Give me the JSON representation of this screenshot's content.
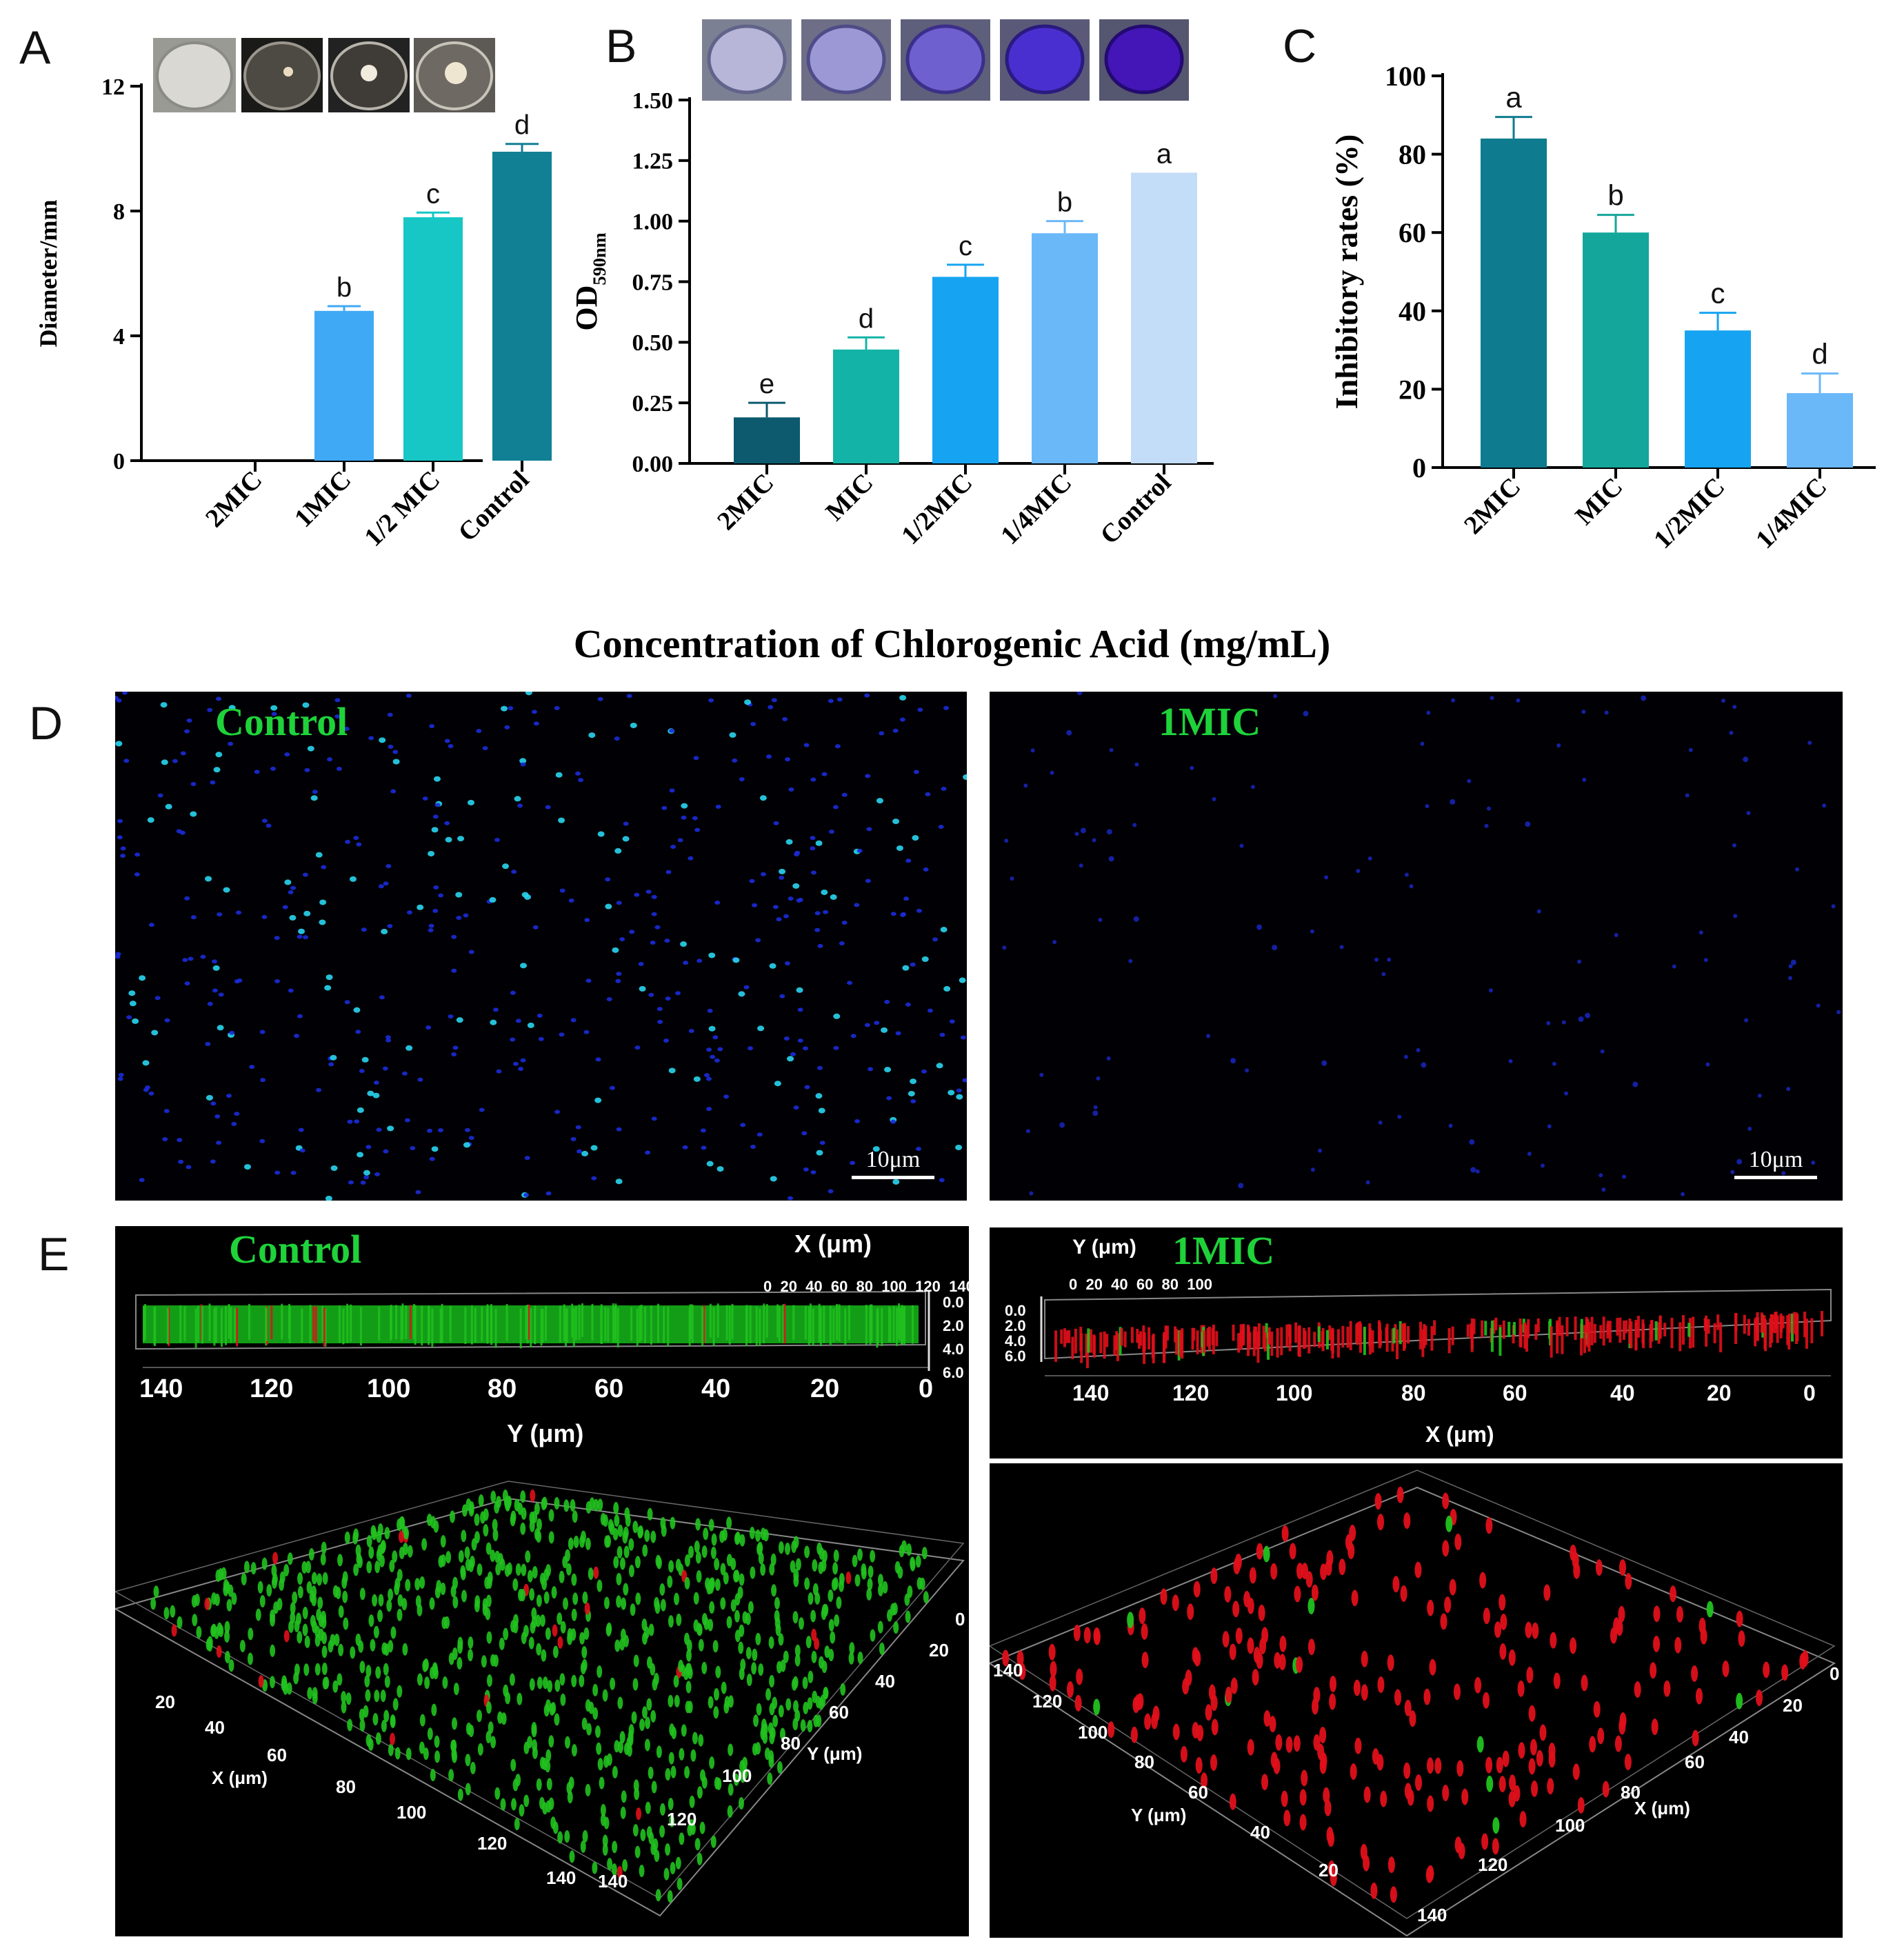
{
  "panel_letters": {
    "A": "A",
    "B": "B",
    "C": "C",
    "D": "D",
    "E": "E"
  },
  "shared_xlabel": "Concentration of Chlorogenic Acid (mg/mL)",
  "chart_data": [
    {
      "id": "A",
      "type": "bar",
      "ylabel": "Diameter/mm",
      "ylim": [
        0,
        12
      ],
      "yticks": [
        "0",
        "4",
        "8",
        "12"
      ],
      "categories": [
        "2MIC",
        "1MIC",
        "1/2 MIC",
        "Control"
      ],
      "values": [
        0,
        4.8,
        7.8,
        9.9
      ],
      "errors": [
        0,
        0.15,
        0.15,
        0.25
      ],
      "letters": [
        "",
        "b",
        "c",
        "d"
      ],
      "colors": [
        "#3fa9f5",
        "#3fa9f5",
        "#16c7c5",
        "#117f94"
      ]
    },
    {
      "id": "B",
      "type": "bar",
      "ylabel": "OD",
      "ylabel_sub": "590nm",
      "ylim": [
        0,
        1.5
      ],
      "yticks": [
        "0.00",
        "0.25",
        "0.50",
        "0.75",
        "1.00",
        "1.25",
        "1.50"
      ],
      "categories": [
        "2MIC",
        "MIC",
        "1/2MIC",
        "1/4MIC",
        "Control"
      ],
      "values": [
        0.19,
        0.47,
        0.77,
        0.95,
        1.2
      ],
      "errors": [
        0.06,
        0.05,
        0.05,
        0.05,
        0.0
      ],
      "letters": [
        "e",
        "d",
        "c",
        "b",
        "a"
      ],
      "colors": [
        "#0d5a6e",
        "#13b4a7",
        "#16a4f2",
        "#6bb8f8",
        "#c3dcf8"
      ]
    },
    {
      "id": "C",
      "type": "bar",
      "ylabel": "Inhibitory rates (%)",
      "ylim": [
        0,
        100
      ],
      "yticks": [
        "0",
        "20",
        "40",
        "60",
        "80",
        "100"
      ],
      "categories": [
        "2MIC",
        "MIC",
        "1/2MIC",
        "1/4MIC"
      ],
      "values": [
        84,
        60,
        35,
        19
      ],
      "errors": [
        5.5,
        4.5,
        4.5,
        5
      ],
      "letters": [
        "a",
        "b",
        "c",
        "d"
      ],
      "colors": [
        "#0f7b8f",
        "#14a69b",
        "#16a4f2",
        "#6bb8f8"
      ]
    }
  ],
  "panelD": {
    "left_label": "Control",
    "right_label": "1MIC",
    "scale_left": "10μm",
    "scale_right": "10μm"
  },
  "panelE": {
    "left_label": "Control",
    "right_label": "1MIC",
    "left_top": {
      "x_axis": "X (μm)",
      "x_ticks": "0  20  40  60  80  100  120  140",
      "z_ticks": [
        "0.0",
        "2.0",
        "4.0",
        "6.0"
      ],
      "y_axis": "Y (μm)",
      "y_ticks": [
        "140",
        "120",
        "100",
        "80",
        "60",
        "40",
        "20",
        "0"
      ]
    },
    "right_top": {
      "y_axis": "Y (μm)",
      "y_ticks": "0  20  40  60  80  100",
      "z_ticks": [
        "0.0",
        "2.0",
        "4.0",
        "6.0"
      ],
      "x_axis": "X (μm)",
      "x_ticks": [
        "140",
        "120",
        "100",
        "80",
        "60",
        "40",
        "20",
        "0"
      ]
    },
    "left_3d": {
      "x_axis": "X (μm)",
      "y_axis": "Y (μm)",
      "x_ticks": [
        "20",
        "40",
        "60",
        "80",
        "100",
        "120",
        "140"
      ],
      "y_ticks": [
        "0",
        "20",
        "40",
        "60",
        "80",
        "100",
        "120",
        "140"
      ]
    },
    "right_3d": {
      "x_axis": "X (μm)",
      "y_axis": "Y (μm)",
      "y_ticks": [
        "140",
        "120",
        "100",
        "80",
        "60",
        "40",
        "20"
      ],
      "x_ticks": [
        "0",
        "20",
        "40",
        "60",
        "80",
        "100",
        "120",
        "140"
      ]
    }
  },
  "colors": {
    "cf_green": "#21c21f",
    "cf_red": "#e0101a",
    "dapi_blue": "#1b2bd8",
    "dapi_cyan": "#29d5f0"
  }
}
